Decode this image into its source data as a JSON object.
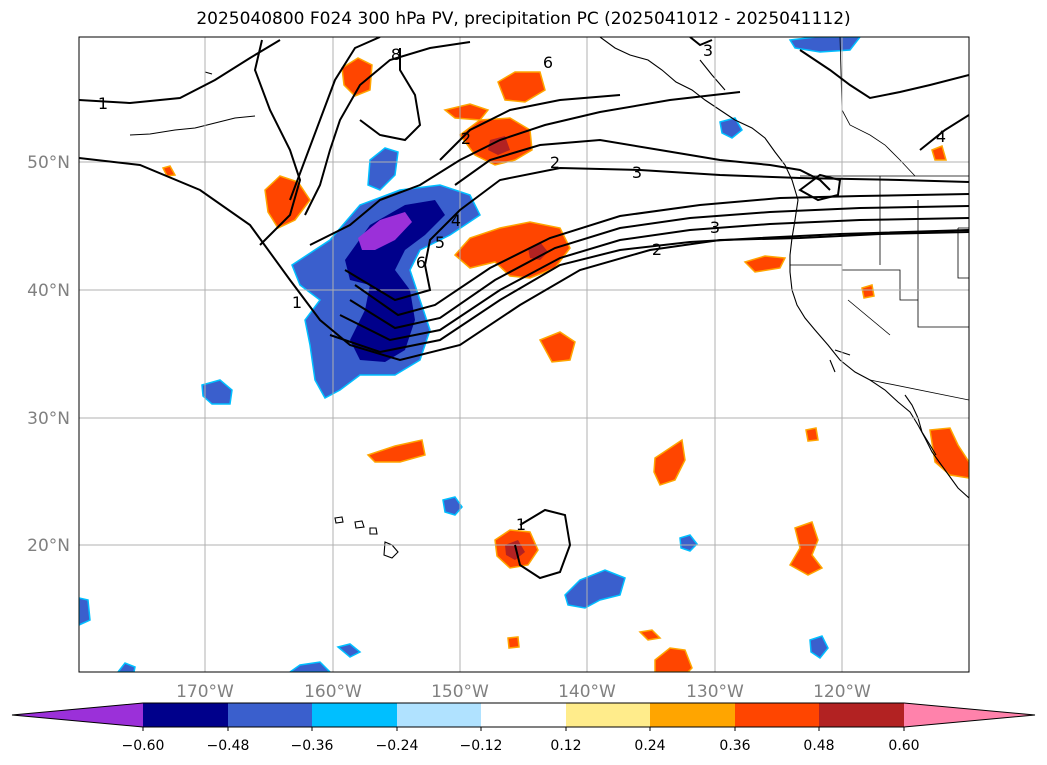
{
  "title": "2025040800 F024 300 hPa PV, precipitation PC (2025041012 - 2025041112)",
  "map": {
    "lat_labels": [
      "50°N",
      "40°N",
      "30°N",
      "20°N"
    ],
    "lon_labels": [
      "170°W",
      "160°W",
      "150°W",
      "140°W",
      "130°W",
      "120°W"
    ],
    "contour_labels": [
      "1",
      "1",
      "1",
      "2",
      "2",
      "2",
      "3",
      "3",
      "3",
      "4",
      "4",
      "5",
      "6",
      "6",
      "8"
    ]
  },
  "colorbar": {
    "ticks": [
      "−0.60",
      "−0.48",
      "−0.36",
      "−0.24",
      "−0.12",
      "0.12",
      "0.24",
      "0.36",
      "0.48",
      "0.60"
    ],
    "colors": [
      "#9b30d9",
      "#00008b",
      "#3a5fcd",
      "#00bfff",
      "#b0e2ff",
      "#ffffff",
      "#ffec8b",
      "#ffa500",
      "#ff4500",
      "#b22222",
      "#ff82ab"
    ]
  }
}
